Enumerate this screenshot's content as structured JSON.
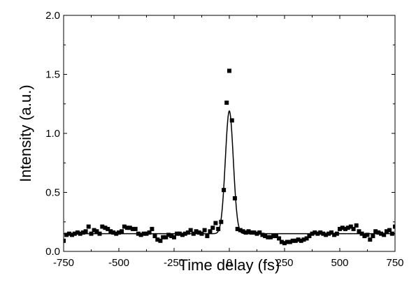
{
  "chart_data": {
    "type": "scatter",
    "title": "",
    "xlabel": "Time delay (fs)",
    "ylabel": "Intensity (a.u.)",
    "xlim": [
      -750,
      750
    ],
    "ylim": [
      0.0,
      2.0
    ],
    "xticks": [
      -750,
      -500,
      -250,
      0,
      250,
      500,
      750
    ],
    "xtick_labels": [
      "-750",
      "-500",
      "-250",
      "0",
      "250",
      "500",
      "750"
    ],
    "yticks": [
      0.0,
      0.5,
      1.0,
      1.5,
      2.0
    ],
    "ytick_labels": [
      "0.0",
      "0.5",
      "1.0",
      "1.5",
      "2.0"
    ],
    "grid": false,
    "legend": "none",
    "series": [
      {
        "type": "scatter",
        "marker": "square",
        "color": "#000000",
        "points": [
          [
            -750,
            0.09
          ],
          [
            -737,
            0.14
          ],
          [
            -725,
            0.15
          ],
          [
            -712,
            0.14
          ],
          [
            -700,
            0.15
          ],
          [
            -687,
            0.16
          ],
          [
            -675,
            0.15
          ],
          [
            -662,
            0.16
          ],
          [
            -650,
            0.17
          ],
          [
            -637,
            0.21
          ],
          [
            -625,
            0.15
          ],
          [
            -612,
            0.18
          ],
          [
            -600,
            0.17
          ],
          [
            -587,
            0.15
          ],
          [
            -575,
            0.21
          ],
          [
            -562,
            0.2
          ],
          [
            -550,
            0.19
          ],
          [
            -537,
            0.17
          ],
          [
            -525,
            0.16
          ],
          [
            -512,
            0.15
          ],
          [
            -500,
            0.16
          ],
          [
            -487,
            0.17
          ],
          [
            -475,
            0.21
          ],
          [
            -462,
            0.2
          ],
          [
            -450,
            0.2
          ],
          [
            -437,
            0.19
          ],
          [
            -425,
            0.19
          ],
          [
            -412,
            0.15
          ],
          [
            -400,
            0.14
          ],
          [
            -387,
            0.15
          ],
          [
            -375,
            0.15
          ],
          [
            -362,
            0.16
          ],
          [
            -350,
            0.19
          ],
          [
            -337,
            0.13
          ],
          [
            -325,
            0.1
          ],
          [
            -312,
            0.09
          ],
          [
            -300,
            0.12
          ],
          [
            -287,
            0.12
          ],
          [
            -275,
            0.14
          ],
          [
            -262,
            0.13
          ],
          [
            -250,
            0.12
          ],
          [
            -237,
            0.15
          ],
          [
            -225,
            0.15
          ],
          [
            -212,
            0.14
          ],
          [
            -200,
            0.15
          ],
          [
            -187,
            0.16
          ],
          [
            -175,
            0.18
          ],
          [
            -162,
            0.15
          ],
          [
            -150,
            0.17
          ],
          [
            -137,
            0.16
          ],
          [
            -125,
            0.15
          ],
          [
            -112,
            0.18
          ],
          [
            -100,
            0.13
          ],
          [
            -87,
            0.17
          ],
          [
            -75,
            0.2
          ],
          [
            -62,
            0.24
          ],
          [
            -50,
            0.19
          ],
          [
            -37,
            0.25
          ],
          [
            -25,
            0.52
          ],
          [
            -12,
            1.26
          ],
          [
            0,
            1.53
          ],
          [
            12,
            1.11
          ],
          [
            25,
            0.45
          ],
          [
            37,
            0.19
          ],
          [
            50,
            0.18
          ],
          [
            62,
            0.17
          ],
          [
            75,
            0.16
          ],
          [
            87,
            0.17
          ],
          [
            100,
            0.16
          ],
          [
            112,
            0.16
          ],
          [
            125,
            0.15
          ],
          [
            137,
            0.16
          ],
          [
            150,
            0.14
          ],
          [
            162,
            0.13
          ],
          [
            175,
            0.12
          ],
          [
            187,
            0.12
          ],
          [
            200,
            0.13
          ],
          [
            212,
            0.13
          ],
          [
            225,
            0.11
          ],
          [
            237,
            0.08
          ],
          [
            250,
            0.07
          ],
          [
            262,
            0.08
          ],
          [
            275,
            0.08
          ],
          [
            287,
            0.09
          ],
          [
            300,
            0.09
          ],
          [
            312,
            0.1
          ],
          [
            325,
            0.09
          ],
          [
            337,
            0.1
          ],
          [
            350,
            0.11
          ],
          [
            362,
            0.13
          ],
          [
            375,
            0.15
          ],
          [
            387,
            0.16
          ],
          [
            400,
            0.15
          ],
          [
            412,
            0.16
          ],
          [
            425,
            0.15
          ],
          [
            437,
            0.14
          ],
          [
            450,
            0.15
          ],
          [
            462,
            0.16
          ],
          [
            475,
            0.14
          ],
          [
            487,
            0.15
          ],
          [
            500,
            0.19
          ],
          [
            512,
            0.2
          ],
          [
            525,
            0.19
          ],
          [
            537,
            0.2
          ],
          [
            550,
            0.21
          ],
          [
            562,
            0.19
          ],
          [
            575,
            0.22
          ],
          [
            587,
            0.17
          ],
          [
            600,
            0.15
          ],
          [
            612,
            0.13
          ],
          [
            625,
            0.14
          ],
          [
            637,
            0.1
          ],
          [
            650,
            0.13
          ],
          [
            662,
            0.17
          ],
          [
            675,
            0.16
          ],
          [
            687,
            0.15
          ],
          [
            700,
            0.14
          ],
          [
            712,
            0.17
          ],
          [
            725,
            0.18
          ],
          [
            737,
            0.15
          ],
          [
            750,
            0.21
          ]
        ]
      },
      {
        "type": "line",
        "fit": "gaussian",
        "color": "#000000",
        "baseline": 0.15,
        "amplitude": 1.04,
        "center": 0,
        "sigma": 18
      }
    ]
  }
}
